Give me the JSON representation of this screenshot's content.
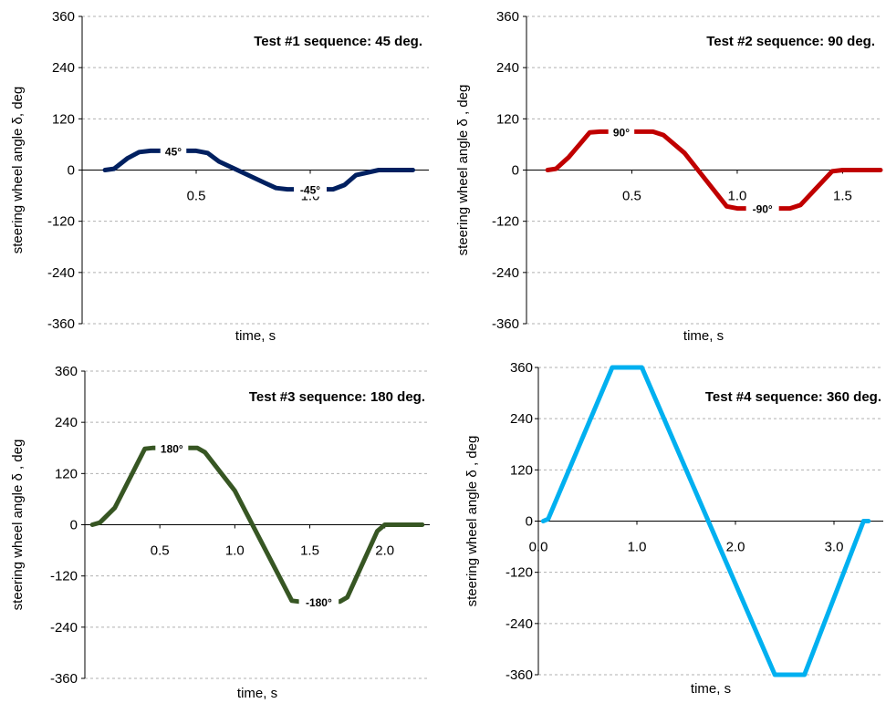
{
  "chart_data": [
    {
      "type": "line",
      "title": "Test #1 sequence: 45 deg.",
      "xlabel": "time, s",
      "ylabel": "steering wheel angle δ, deg",
      "ylim": [
        -360,
        360
      ],
      "xlim": [
        0,
        1.52
      ],
      "yticks": [
        360,
        240,
        120,
        0,
        -120,
        -240,
        -360
      ],
      "yticklabels": [
        "360",
        "240",
        "120",
        "0",
        "-120",
        "-240",
        "-360"
      ],
      "xticks": [
        0.5,
        1.0
      ],
      "xticklabels": [
        "0.5",
        "1.0"
      ],
      "grid": true,
      "color": "#002060",
      "x": [
        0.1,
        0.14,
        0.2,
        0.25,
        0.3,
        0.5,
        0.55,
        0.6,
        0.8,
        0.85,
        0.9,
        1.1,
        1.15,
        1.2,
        1.3,
        1.35,
        1.4,
        1.45
      ],
      "y": [
        0,
        3,
        28,
        42,
        45,
        45,
        40,
        20,
        -30,
        -42,
        -45,
        -45,
        -35,
        -12,
        0,
        0,
        0,
        0
      ],
      "annotations": [
        {
          "text": "45°",
          "x": 0.4,
          "y": 45
        },
        {
          "text": "-45°",
          "x": 1.0,
          "y": -45
        }
      ]
    },
    {
      "type": "line",
      "title": "Test #2 sequence: 90 deg.",
      "xlabel": "time, s",
      "ylabel": "steering wheel angle δ , deg",
      "ylim": [
        -360,
        360
      ],
      "xlim": [
        0,
        1.68
      ],
      "yticks": [
        360,
        240,
        120,
        0,
        -120,
        -240,
        -360
      ],
      "yticklabels": [
        "360",
        "240",
        "120",
        "0",
        "-120",
        "-240",
        "-360"
      ],
      "xticks": [
        0.5,
        1.0,
        1.5
      ],
      "xticklabels": [
        "0.5",
        "1.0",
        "1.5"
      ],
      "grid": true,
      "color": "#c00000",
      "x": [
        0.1,
        0.14,
        0.2,
        0.3,
        0.35,
        0.6,
        0.65,
        0.75,
        0.95,
        1.0,
        1.25,
        1.3,
        1.45,
        1.5,
        1.68
      ],
      "y": [
        0,
        3,
        30,
        88,
        90,
        90,
        82,
        40,
        -85,
        -90,
        -90,
        -82,
        -3,
        0,
        0
      ],
      "annotations": [
        {
          "text": "90°",
          "x": 0.45,
          "y": 90
        },
        {
          "text": "-90°",
          "x": 1.12,
          "y": -90
        }
      ]
    },
    {
      "type": "line",
      "title": "Test #3 sequence: 180 deg.",
      "xlabel": "time, s",
      "ylabel": "steering wheel angle δ , deg",
      "ylim": [
        -360,
        360
      ],
      "xlim": [
        0,
        2.3
      ],
      "yticks": [
        360,
        240,
        120,
        0,
        -120,
        -240,
        -360
      ],
      "yticklabels": [
        "360",
        "240",
        "120",
        "0",
        "-120",
        "-240",
        "-360"
      ],
      "xticks": [
        0.5,
        1.0,
        1.5,
        2.0
      ],
      "xticklabels": [
        "0.5",
        "1.0",
        "1.5",
        "2.0"
      ],
      "grid": true,
      "color": "#375623",
      "x": [
        0.05,
        0.1,
        0.2,
        0.4,
        0.45,
        0.75,
        0.8,
        1.0,
        1.38,
        1.43,
        1.7,
        1.75,
        1.95,
        2.0,
        2.25
      ],
      "y": [
        0,
        5,
        40,
        178,
        180,
        180,
        170,
        80,
        -178,
        -180,
        -180,
        -170,
        -15,
        0,
        0
      ],
      "annotations": [
        {
          "text": "180°",
          "x": 0.58,
          "y": 180
        },
        {
          "text": "-180°",
          "x": 1.56,
          "y": -180
        }
      ]
    },
    {
      "type": "line",
      "title": "Test #4 sequence: 360 deg.",
      "xlabel": "time, s",
      "ylabel": "steering wheel angle δ , deg",
      "ylim": [
        -360,
        360
      ],
      "xlim": [
        0,
        3.5
      ],
      "yticks": [
        360,
        240,
        120,
        0,
        -120,
        -240,
        -360
      ],
      "yticklabels": [
        "360",
        "240",
        "120",
        "0",
        "-120",
        "-240",
        "-360"
      ],
      "xticks": [
        0.0,
        1.0,
        2.0,
        3.0
      ],
      "xticklabels": [
        "0.0",
        "1.0",
        "2.0",
        "3.0"
      ],
      "grid": true,
      "color": "#00b0f0",
      "x": [
        0.05,
        0.1,
        0.75,
        1.05,
        2.4,
        2.7,
        3.3,
        3.35
      ],
      "y": [
        0,
        5,
        360,
        360,
        -360,
        -360,
        0,
        0
      ],
      "annotations": []
    }
  ]
}
